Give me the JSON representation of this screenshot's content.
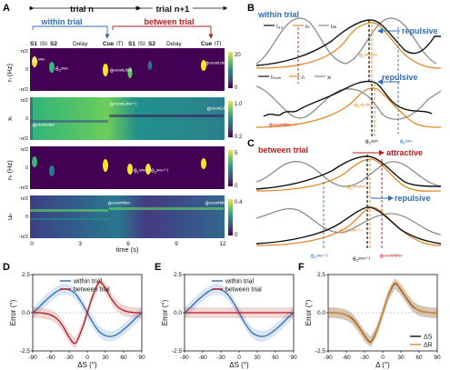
{
  "panels": {
    "A": "A",
    "B": "B",
    "C": "C",
    "D": "D",
    "E": "E",
    "F": "F"
  },
  "panel_a": {
    "trial_n": "trial n",
    "trial_n1": "trial n+1",
    "within_trial": "within trial",
    "between_trial": "between trial",
    "phases_n": [
      "S1",
      "ISI",
      "S2",
      "Delay",
      "Cue",
      "ITI"
    ],
    "phases_n1": [
      "S1",
      "ISI",
      "S2"
    ],
    "row_ylabels": [
      "rₗ (Hz)",
      "xₗ",
      "rₕ (Hz)",
      "uₕ"
    ],
    "ytick_top": "π/2",
    "ytick_mid": "0",
    "ytick_bot": "-π/2",
    "xticks": [
      "0",
      "3",
      "6",
      "9",
      "12"
    ],
    "xlabel": "time (s)",
    "colorbars": [
      {
        "max": "20",
        "min": "0"
      },
      {
        "max": "1.0",
        "min": "0.2"
      },
      {
        "max": "5",
        "min": "0"
      },
      {
        "max": "0.4",
        "min": "0"
      }
    ],
    "heat_labels": [
      {
        "text": "θ₁ˢʷⁿ"
      },
      {
        "text": "θ₂ˢʷⁿ"
      },
      {
        "text": "θᶜᵘᵉʷᴸᵈʷⁿ"
      },
      {
        "text": "θᶜᵘᵉʷᴸᵈʷⁿ⁺¹"
      },
      {
        "text": "θᶜᵘᵉʷᴸᵈʷⁿ"
      },
      {
        "text": "θᶜᵘᵉʷᴸᵈʷⁿ⁺¹"
      },
      {
        "text": "θᶜᵘᵉʷᴸᵈʷⁿ⁺¹"
      },
      {
        "text": "θ₁ˢʷⁿ⁺¹"
      },
      {
        "text": "θ₂ˢʷⁿ⁺¹"
      },
      {
        "text": "θᶜᵘᵉʷᴴᵈʷⁿ"
      },
      {
        "text": "θᶜᵘᵉʷᴴᵈʷⁿ⁺¹"
      }
    ]
  },
  "panel_b": {
    "title": "within trial",
    "legend_top": [
      "I₃₃",
      "rₕ",
      "uₕ"
    ],
    "legend_bottom": [
      "Iₛₜᵢₘ",
      "rₗ",
      "xₗ"
    ],
    "repulsive_1": "repulsive",
    "repulsive_2": "repulsive",
    "theta_labels": [
      "θ₂ʷᴴᵈʷⁿ",
      "θ₂ʷᴸᵈʷⁿ",
      "θᶜᵘᵉʷᴴᵈʷⁿ⁻¹",
      "θ₂ˢʷⁿ",
      "θ₁ˢʷⁿ"
    ]
  },
  "panel_c": {
    "title": "between trial",
    "attractive": "attractive",
    "repulsive": "repulsive",
    "theta_labels": [
      "θ₂ʷᴴᵈʷⁿ⁺¹",
      "θ₂ʷᴸᵈʷⁿ⁺¹",
      "θ₁ˢʷⁿ⁺¹",
      "θ₂ˢʷⁿ⁺¹",
      "θᶜᵘᵉʷᴴᵈʷⁿ"
    ]
  },
  "colors": {
    "blue": "#2f6db5",
    "red": "#b31b1b",
    "orange": "#e08a2a",
    "gray": "#8c8c8c",
    "black": "#111111"
  },
  "chart_data": [
    {
      "type": "line",
      "panel": "D",
      "xlabel": "ΔS (°)",
      "ylabel": "Error (°)",
      "xlim": [
        -90,
        90
      ],
      "ylim": [
        -2.5,
        2.5
      ],
      "xticks": [
        -90,
        -60,
        -30,
        0,
        30,
        60,
        90
      ],
      "yticks": [
        -2.5,
        0.0,
        2.5
      ],
      "legend": "top-left",
      "series": [
        {
          "name": "within trial",
          "color": "#2f6db5",
          "x": [
            -90,
            -80,
            -70,
            -60,
            -50,
            -40,
            -30,
            -20,
            -10,
            0,
            10,
            20,
            30,
            40,
            50,
            60,
            70,
            80,
            90
          ],
          "values": [
            0,
            0.35,
            0.75,
            1.1,
            1.4,
            1.55,
            1.5,
            1.25,
            0.7,
            0,
            -0.7,
            -1.25,
            -1.5,
            -1.55,
            -1.4,
            -1.1,
            -0.75,
            -0.35,
            0
          ]
        },
        {
          "name": "between trial",
          "color": "#b31b1b",
          "x": [
            -90,
            -80,
            -70,
            -60,
            -50,
            -40,
            -30,
            -20,
            -10,
            0,
            10,
            20,
            30,
            40,
            50,
            60,
            70,
            80,
            90
          ],
          "values": [
            0,
            0,
            -0.05,
            -0.15,
            -0.4,
            -0.9,
            -1.6,
            -2.0,
            -1.2,
            0,
            1.2,
            2.0,
            1.6,
            0.9,
            0.4,
            0.15,
            0.05,
            0,
            0
          ]
        }
      ]
    },
    {
      "type": "line",
      "panel": "E",
      "xlabel": "ΔS (°)",
      "ylabel": "Error (°)",
      "xlim": [
        -90,
        90
      ],
      "ylim": [
        -2.5,
        2.5
      ],
      "xticks": [
        -90,
        -60,
        -30,
        0,
        30,
        60,
        90
      ],
      "yticks": [
        -2.5,
        0.0,
        2.5
      ],
      "legend": "top-left",
      "series": [
        {
          "name": "within trial",
          "color": "#2f6db5",
          "x": [
            -90,
            -80,
            -70,
            -60,
            -50,
            -40,
            -30,
            -20,
            -10,
            0,
            10,
            20,
            30,
            40,
            50,
            60,
            70,
            80,
            90
          ],
          "values": [
            0,
            0.35,
            0.75,
            1.1,
            1.4,
            1.55,
            1.5,
            1.25,
            0.7,
            0,
            -0.7,
            -1.25,
            -1.5,
            -1.55,
            -1.4,
            -1.1,
            -0.75,
            -0.35,
            0
          ]
        },
        {
          "name": "between trial",
          "color": "#b31b1b",
          "x": [
            -90,
            -80,
            -70,
            -60,
            -50,
            -40,
            -30,
            -20,
            -10,
            0,
            10,
            20,
            30,
            40,
            50,
            60,
            70,
            80,
            90
          ],
          "values": [
            0,
            0,
            0,
            0,
            0,
            0,
            0,
            0,
            0,
            0,
            0,
            0,
            0,
            0,
            0,
            0,
            0,
            0,
            0
          ]
        }
      ]
    },
    {
      "type": "line",
      "panel": "F",
      "xlabel": "Δ (°)",
      "ylabel": "Error (°)",
      "xlim": [
        -90,
        90
      ],
      "ylim": [
        -2.5,
        2.5
      ],
      "xticks": [
        -90,
        -60,
        -30,
        0,
        30,
        60,
        90
      ],
      "yticks": [
        -2.5,
        0.0,
        2.5
      ],
      "legend": "bottom-right",
      "series": [
        {
          "name": "ΔS",
          "color": "#111111",
          "x": [
            -90,
            -80,
            -70,
            -60,
            -50,
            -40,
            -30,
            -20,
            -10,
            0,
            10,
            20,
            30,
            40,
            50,
            60,
            70,
            80,
            90
          ],
          "values": [
            0,
            0,
            -0.05,
            -0.15,
            -0.4,
            -0.9,
            -1.5,
            -1.9,
            -1.2,
            0,
            1.2,
            1.9,
            1.5,
            0.9,
            0.4,
            0.15,
            0.05,
            0,
            0
          ]
        },
        {
          "name": "ΔR",
          "color": "#e08a2a",
          "x": [
            -90,
            -80,
            -70,
            -60,
            -50,
            -40,
            -30,
            -20,
            -10,
            0,
            10,
            20,
            30,
            40,
            50,
            60,
            70,
            80,
            90
          ],
          "values": [
            0,
            0,
            -0.05,
            -0.15,
            -0.45,
            -0.95,
            -1.55,
            -1.95,
            -1.25,
            0,
            1.25,
            1.95,
            1.55,
            0.95,
            0.45,
            0.15,
            0.05,
            0,
            0
          ]
        }
      ]
    }
  ]
}
